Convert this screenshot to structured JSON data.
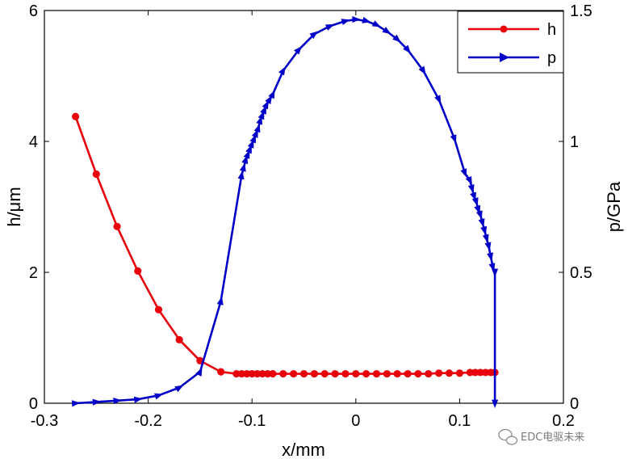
{
  "chart_data": {
    "type": "line",
    "xlabel": "x/mm",
    "ylabel_left": "h/μm",
    "ylabel_right": "p/GPa",
    "xlim": [
      -0.3,
      0.2
    ],
    "ylim_left": [
      0,
      6
    ],
    "ylim_right": [
      0,
      1.5
    ],
    "x_ticks": [
      "-0.3",
      "-0.2",
      "-0.1",
      "0",
      "0.1",
      "0.2"
    ],
    "y_left_ticks": [
      "0",
      "2",
      "4",
      "6"
    ],
    "y_right_ticks": [
      "0",
      "0.5",
      "1",
      "1.5"
    ],
    "grid": false,
    "legend_position": "top-right",
    "series": [
      {
        "name": "h",
        "axis": "left",
        "color": "#e8000b",
        "marker": "circle",
        "x": [
          -0.27,
          -0.25,
          -0.23,
          -0.21,
          -0.19,
          -0.17,
          -0.15,
          -0.13,
          -0.115,
          -0.11,
          -0.105,
          -0.1,
          -0.095,
          -0.09,
          -0.085,
          -0.08,
          -0.07,
          -0.06,
          -0.05,
          -0.04,
          -0.03,
          -0.02,
          -0.01,
          0.0,
          0.01,
          0.02,
          0.03,
          0.04,
          0.05,
          0.06,
          0.07,
          0.08,
          0.09,
          0.1,
          0.11,
          0.115,
          0.12,
          0.125,
          0.13,
          0.134
        ],
        "values": [
          4.38,
          3.5,
          2.7,
          2.02,
          1.43,
          0.97,
          0.65,
          0.48,
          0.45,
          0.45,
          0.45,
          0.45,
          0.45,
          0.45,
          0.45,
          0.45,
          0.45,
          0.45,
          0.45,
          0.45,
          0.45,
          0.45,
          0.45,
          0.45,
          0.45,
          0.45,
          0.45,
          0.45,
          0.45,
          0.45,
          0.45,
          0.46,
          0.46,
          0.46,
          0.47,
          0.47,
          0.47,
          0.47,
          0.47,
          0.47
        ]
      },
      {
        "name": "p",
        "axis": "right",
        "color": "#0000c8",
        "marker": "triangle-right",
        "x": [
          -0.27,
          -0.25,
          -0.23,
          -0.21,
          -0.19,
          -0.17,
          -0.15,
          -0.13,
          -0.11,
          -0.108,
          -0.106,
          -0.104,
          -0.102,
          -0.1,
          -0.098,
          -0.096,
          -0.094,
          -0.092,
          -0.09,
          -0.088,
          -0.086,
          -0.083,
          -0.08,
          -0.07,
          -0.055,
          -0.04,
          -0.025,
          -0.01,
          0.0,
          0.01,
          0.02,
          0.03,
          0.04,
          0.05,
          0.065,
          0.08,
          0.095,
          0.105,
          0.11,
          0.112,
          0.114,
          0.116,
          0.118,
          0.12,
          0.122,
          0.124,
          0.126,
          0.128,
          0.13,
          0.132,
          0.134,
          0.134
        ],
        "values": [
          0.0,
          0.005,
          0.01,
          0.015,
          0.03,
          0.06,
          0.12,
          0.39,
          0.87,
          0.9,
          0.93,
          0.95,
          0.97,
          0.99,
          1.01,
          1.03,
          1.05,
          1.08,
          1.1,
          1.12,
          1.14,
          1.16,
          1.18,
          1.27,
          1.35,
          1.41,
          1.44,
          1.46,
          1.466,
          1.46,
          1.445,
          1.42,
          1.39,
          1.35,
          1.27,
          1.16,
          1.01,
          0.88,
          0.85,
          0.82,
          0.79,
          0.77,
          0.74,
          0.72,
          0.69,
          0.66,
          0.63,
          0.6,
          0.56,
          0.52,
          0.5,
          0.0
        ]
      }
    ]
  },
  "watermark": {
    "text": "EDC电驱未来",
    "icon": "wechat-icon"
  }
}
